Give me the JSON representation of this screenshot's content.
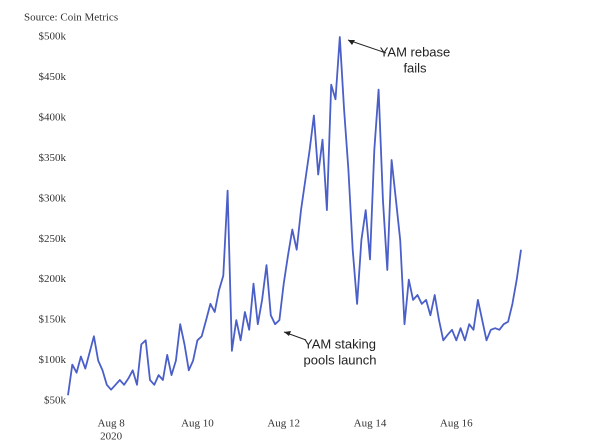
{
  "chart_data": {
    "type": "line",
    "source": "Source: Coin Metrics",
    "categories": [
      null,
      null,
      null,
      null,
      null,
      null,
      null,
      null,
      null,
      null,
      "Aug 8",
      null,
      null,
      null,
      null,
      null,
      null,
      null,
      null,
      null,
      null,
      null,
      null,
      null,
      null,
      null,
      null,
      null,
      null,
      null,
      "Aug 10",
      null,
      null,
      null,
      null,
      null,
      null,
      null,
      null,
      null,
      null,
      null,
      null,
      null,
      null,
      null,
      null,
      null,
      null,
      null,
      "Aug 12",
      null,
      null,
      null,
      null,
      null,
      null,
      null,
      null,
      null,
      null,
      null,
      null,
      null,
      null,
      null,
      null,
      null,
      null,
      null,
      "Aug 14",
      null,
      null,
      null,
      null,
      null,
      null,
      null,
      null,
      null,
      null,
      null,
      null,
      null,
      null,
      null,
      null,
      null,
      null,
      null,
      "Aug 16",
      null,
      null,
      null,
      null,
      null,
      null,
      null,
      null,
      null,
      null,
      null,
      null,
      null,
      null,
      null
    ],
    "year_label": "2020",
    "series": [
      {
        "color": "#4b5fc9",
        "values": [
          57000,
          95000,
          85000,
          105000,
          90000,
          110000,
          130000,
          100000,
          88000,
          70000,
          64000,
          70000,
          76000,
          70000,
          78000,
          88000,
          70000,
          120000,
          125000,
          76000,
          70000,
          82000,
          76000,
          107000,
          82000,
          100000,
          145000,
          120000,
          88000,
          100000,
          125000,
          130000,
          150000,
          170000,
          160000,
          187000,
          205000,
          310000,
          112000,
          150000,
          125000,
          160000,
          138000,
          195000,
          145000,
          175000,
          218000,
          156000,
          145000,
          150000,
          195000,
          230000,
          262000,
          237000,
          286000,
          323000,
          360000,
          403000,
          330000,
          373000,
          286000,
          441000,
          423000,
          500000,
          410000,
          336000,
          237000,
          170000,
          249000,
          286000,
          225000,
          360000,
          435000,
          299000,
          212000,
          348000,
          299000,
          249000,
          145000,
          200000,
          175000,
          181000,
          170000,
          175000,
          156000,
          181000,
          150000,
          125000,
          132000,
          138000,
          125000,
          140000,
          125000,
          145000,
          138000,
          175000,
          150000,
          125000,
          138000,
          140000,
          138000,
          145000,
          148000,
          170000,
          200000,
          237000
        ]
      }
    ],
    "ylim": [
      50000,
      500000
    ],
    "yticks": [
      {
        "value": 50000,
        "label": "$50k"
      },
      {
        "value": 100000,
        "label": "$100k"
      },
      {
        "value": 150000,
        "label": "$150k"
      },
      {
        "value": 200000,
        "label": "$200k"
      },
      {
        "value": 250000,
        "label": "$250k"
      },
      {
        "value": 300000,
        "label": "$300k"
      },
      {
        "value": 350000,
        "label": "$350k"
      },
      {
        "value": 400000,
        "label": "$400k"
      },
      {
        "value": 450000,
        "label": "$450k"
      },
      {
        "value": 500000,
        "label": "$500k"
      }
    ],
    "annotations": [
      {
        "lines": [
          "YAM rebase",
          "fails"
        ]
      },
      {
        "lines": [
          "YAM staking",
          "pools launch"
        ]
      }
    ]
  }
}
